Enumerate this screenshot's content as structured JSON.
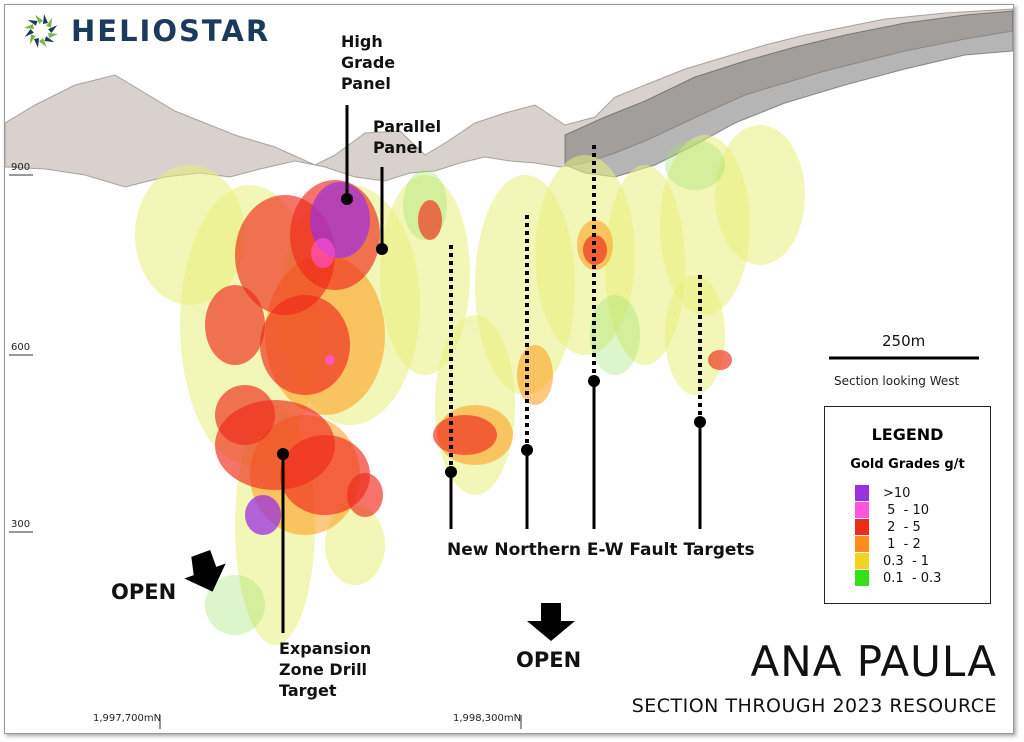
{
  "logo": {
    "name": "HELIOSTAR",
    "icon": "sunburst-logo-icon"
  },
  "title": "ANA PAULA",
  "subtitle": "SECTION THROUGH 2023 RESOURCE",
  "annotations": {
    "high_grade_panel": "High\nGrade\nPanel",
    "parallel_panel": "Parallel\nPanel",
    "expansion": "Expansion\nZone Drill\nTarget",
    "fault_targets": "New Northern E-W Fault Targets",
    "open_left": "OPEN",
    "open_center": "OPEN"
  },
  "elevation_ticks": [
    "900",
    "600",
    "300"
  ],
  "northing_ticks": [
    "1,997,700mN",
    "1,998,300mN"
  ],
  "scale_bar": {
    "label": "250m",
    "note": "Section looking West"
  },
  "legend": {
    "title": "LEGEND",
    "subtitle": "Gold Grades g/t",
    "items": [
      {
        "label": ">10",
        "color": "#9b30e0"
      },
      {
        "label": " 5  - 10",
        "color": "#ff55dd"
      },
      {
        "label": " 2  - 5",
        "color": "#ee2a1a"
      },
      {
        "label": " 1  - 2",
        "color": "#ff8c1a"
      },
      {
        "label": "0.3  - 1",
        "color": "#f5d21e"
      },
      {
        "label": "0.1  - 0.3",
        "color": "#36e016"
      }
    ]
  },
  "colors": {
    "text": "#111111",
    "logo_text": "#1b3a5c",
    "logo_green": "#7cb342"
  }
}
